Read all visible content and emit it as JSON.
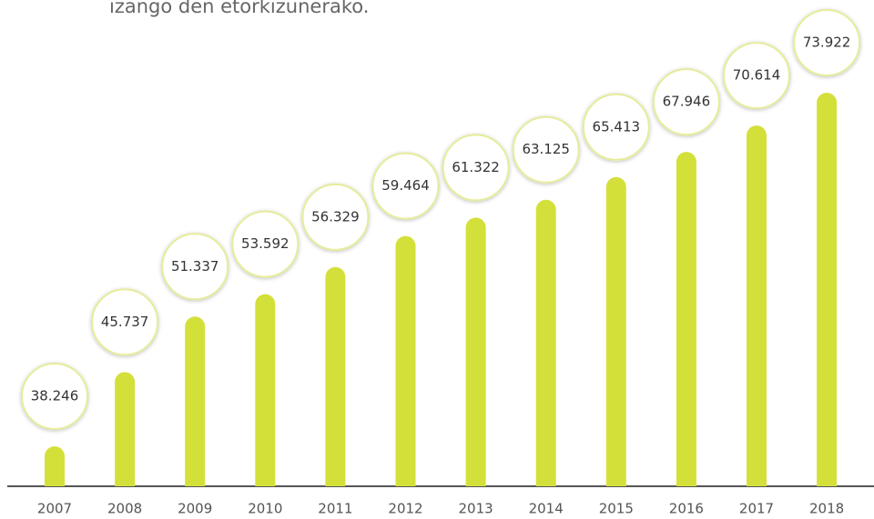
{
  "chart_data": {
    "type": "bar",
    "subtitle": "izango den etorkizunerako.",
    "categories": [
      "2007",
      "2008",
      "2009",
      "2010",
      "2011",
      "2012",
      "2013",
      "2014",
      "2015",
      "2016",
      "2017",
      "2018"
    ],
    "values": [
      38246,
      45737,
      51337,
      53592,
      56329,
      59464,
      61322,
      63125,
      65413,
      67946,
      70614,
      73922
    ],
    "value_labels": [
      "38.246",
      "45.737",
      "51.337",
      "53.592",
      "56.329",
      "59.464",
      "61.322",
      "63.125",
      "65.413",
      "67.946",
      "70.614",
      "73.922"
    ],
    "color": "#d4e03a"
  }
}
